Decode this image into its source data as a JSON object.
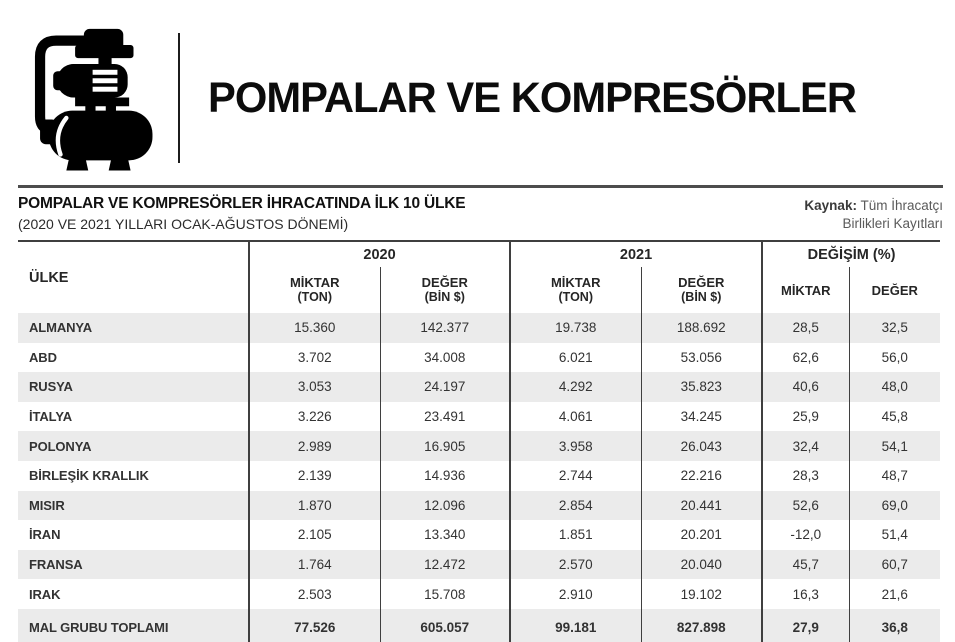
{
  "header": {
    "title": "POMPALAR VE KOMPRESÖRLER",
    "logo_icon": "pump-compressor-icon"
  },
  "section": {
    "title": "POMPALAR VE KOMPRESÖRLER İHRACATINDA İLK 10 ÜLKE",
    "subtitle": "(2020 VE 2021 YILLARI OCAK-AĞUSTOS DÖNEMİ)",
    "source_label": "Kaynak:",
    "source_line1": "Tüm İhracatçı",
    "source_line2": "Birlikleri Kayıtları"
  },
  "table": {
    "country_header": "ÜLKE",
    "groups": [
      {
        "label": "2020"
      },
      {
        "label": "2021"
      },
      {
        "label": "DEĞİŞİM (%)"
      }
    ],
    "subheaders": [
      {
        "l1": "MİKTAR",
        "l2": "(TON)"
      },
      {
        "l1": "DEĞER",
        "l2": "(BİN $)"
      },
      {
        "l1": "MİKTAR",
        "l2": "(TON)"
      },
      {
        "l1": "DEĞER",
        "l2": "(BİN $)"
      },
      {
        "l1": "MİKTAR",
        "l2": ""
      },
      {
        "l1": "DEĞER",
        "l2": ""
      }
    ],
    "rows": [
      {
        "country": "ALMANYA",
        "values": [
          "15.360",
          "142.377",
          "19.738",
          "188.692",
          "28,5",
          "32,5"
        ]
      },
      {
        "country": "ABD",
        "values": [
          "3.702",
          "34.008",
          "6.021",
          "53.056",
          "62,6",
          "56,0"
        ]
      },
      {
        "country": "RUSYA",
        "values": [
          "3.053",
          "24.197",
          "4.292",
          "35.823",
          "40,6",
          "48,0"
        ]
      },
      {
        "country": "İTALYA",
        "values": [
          "3.226",
          "23.491",
          "4.061",
          "34.245",
          "25,9",
          "45,8"
        ]
      },
      {
        "country": "POLONYA",
        "values": [
          "2.989",
          "16.905",
          "3.958",
          "26.043",
          "32,4",
          "54,1"
        ]
      },
      {
        "country": "BİRLEŞİK KRALLIK",
        "values": [
          "2.139",
          "14.936",
          "2.744",
          "22.216",
          "28,3",
          "48,7"
        ]
      },
      {
        "country": "MISIR",
        "values": [
          "1.870",
          "12.096",
          "2.854",
          "20.441",
          "52,6",
          "69,0"
        ]
      },
      {
        "country": "İRAN",
        "values": [
          "2.105",
          "13.340",
          "1.851",
          "20.201",
          "-12,0",
          "51,4"
        ]
      },
      {
        "country": "FRANSA",
        "values": [
          "1.764",
          "12.472",
          "2.570",
          "20.040",
          "45,7",
          "60,7"
        ]
      },
      {
        "country": "IRAK",
        "values": [
          "2.503",
          "15.708",
          "2.910",
          "19.102",
          "16,3",
          "21,6"
        ]
      },
      {
        "country": "MAL GRUBU TOPLAMI",
        "values": [
          "77.526",
          "605.057",
          "99.181",
          "827.898",
          "27,9",
          "36,8"
        ],
        "total": true
      }
    ]
  },
  "colors": {
    "border": "#3f3f3f",
    "stripe": "#ebebeb",
    "text": "#333333",
    "title": "#0c0c0c"
  }
}
